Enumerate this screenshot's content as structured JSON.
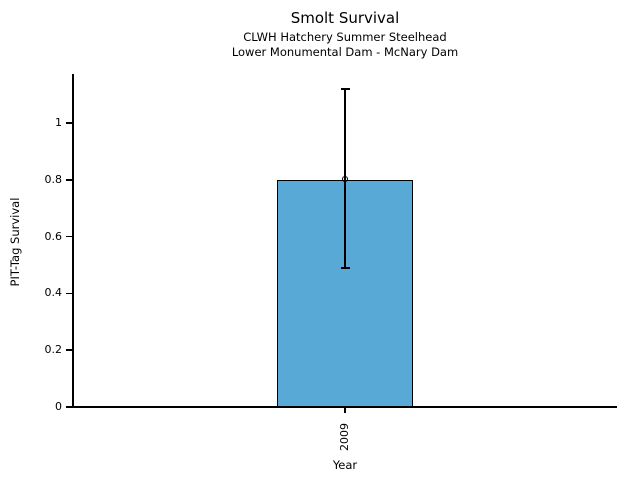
{
  "chart_data": {
    "type": "bar",
    "title": "Smolt Survival",
    "subtitles": [
      "CLWH Hatchery Summer Steelhead",
      "Lower Monumental Dam - McNary Dam"
    ],
    "xlabel": "Year",
    "ylabel": "PIT-Tag Survival",
    "categories": [
      "2009"
    ],
    "values": [
      0.8
    ],
    "error_low": [
      0.49
    ],
    "error_high": [
      1.12
    ],
    "point_marker": "open-circle",
    "yticks": [
      0,
      0.2,
      0.4,
      0.6,
      0.8,
      1
    ],
    "ytick_labels": [
      "0",
      "0.2",
      "0.4",
      "0.6",
      "0.8",
      "1"
    ],
    "ylim": [
      0,
      1.17
    ],
    "grid": false,
    "legend": "none",
    "bar_color": "#58A9D6",
    "bar_edge_color": "#000000",
    "axis_color": "#000000",
    "text_color": "#000000"
  }
}
